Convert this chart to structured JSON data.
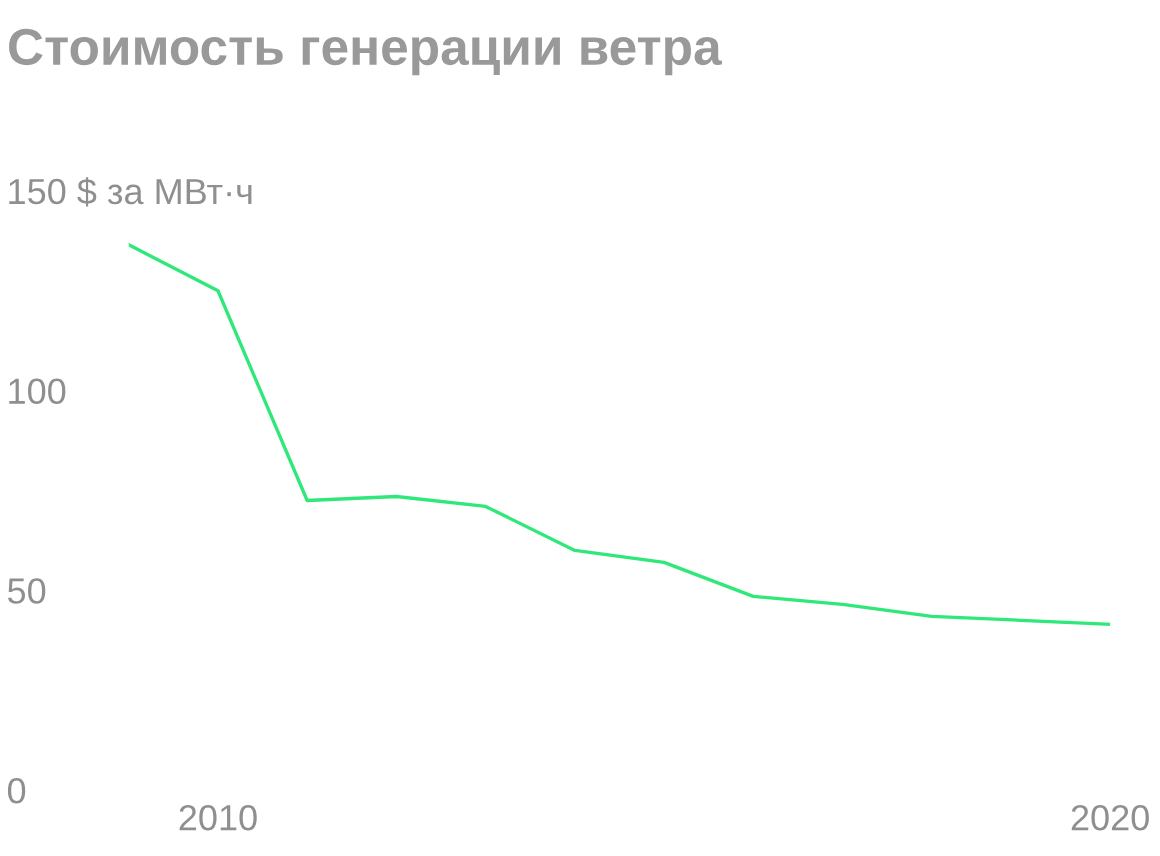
{
  "chart_data": {
    "type": "line",
    "title": "Стоимость генерации ветра",
    "categories": [
      null,
      "2010",
      null,
      null,
      null,
      null,
      null,
      null,
      null,
      null,
      null,
      "2020"
    ],
    "series": [
      {
        "color": "#2fe879",
        "values": [
          136.5,
          125,
          72.5,
          73.5,
          71,
          60,
          57,
          48.5,
          46.5,
          43.5,
          42.5,
          41.5
        ]
      }
    ],
    "ylim": [
      0,
      150
    ],
    "yticks": [
      0,
      50,
      100,
      {
        "value": 150,
        "label": "150 $ за МВт·ч"
      }
    ],
    "grid": false,
    "legend": false,
    "marker": "none",
    "line_style": "solid"
  }
}
